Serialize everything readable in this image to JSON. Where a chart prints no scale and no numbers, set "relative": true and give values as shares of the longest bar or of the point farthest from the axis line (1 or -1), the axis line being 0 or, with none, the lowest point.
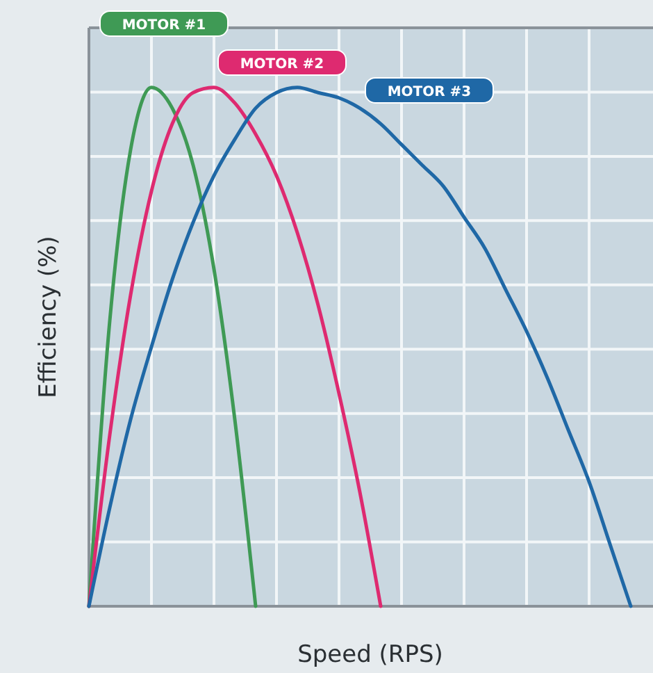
{
  "chart_data": {
    "type": "line",
    "xlabel": "Speed (RPS)",
    "ylabel": "Efficiency (%)",
    "relative": true,
    "grid": true,
    "legend": false,
    "marker": "none",
    "line_style": "solid",
    "categories": [
      null,
      null,
      null,
      null,
      null,
      null,
      null,
      null,
      null,
      null,
      null,
      null,
      null,
      null,
      null,
      null,
      null,
      null,
      null,
      null,
      null,
      null,
      null,
      null,
      null,
      null,
      null,
      null
    ],
    "series": [
      {
        "name": "MOTOR #1",
        "color": "#3f9a55",
        "values": [
          0,
          0.55,
          0.88,
          1.0,
          0.96,
          0.85,
          0.65,
          0.36,
          0,
          null,
          null,
          null,
          null,
          null,
          null,
          null,
          null,
          null,
          null,
          null,
          null,
          null,
          null,
          null,
          null,
          null,
          null,
          null
        ]
      },
      {
        "name": "MOTOR #2",
        "color": "#de2a70",
        "values": [
          0,
          0.33,
          0.6,
          0.8,
          0.93,
          0.99,
          1.0,
          0.97,
          0.91,
          0.83,
          0.72,
          0.58,
          0.41,
          0.22,
          0,
          null,
          null,
          null,
          null,
          null,
          null,
          null,
          null,
          null,
          null,
          null,
          null,
          null
        ]
      },
      {
        "name": "MOTOR #3",
        "color": "#1f68a6",
        "values": [
          0,
          0.19,
          0.36,
          0.5,
          0.63,
          0.74,
          0.83,
          0.9,
          0.96,
          0.99,
          1.0,
          0.99,
          0.98,
          0.96,
          0.93,
          0.89,
          0.85,
          0.81,
          0.75,
          0.69,
          0.61,
          0.53,
          0.44,
          0.34,
          0.24,
          0.12,
          0,
          null
        ]
      }
    ]
  }
}
